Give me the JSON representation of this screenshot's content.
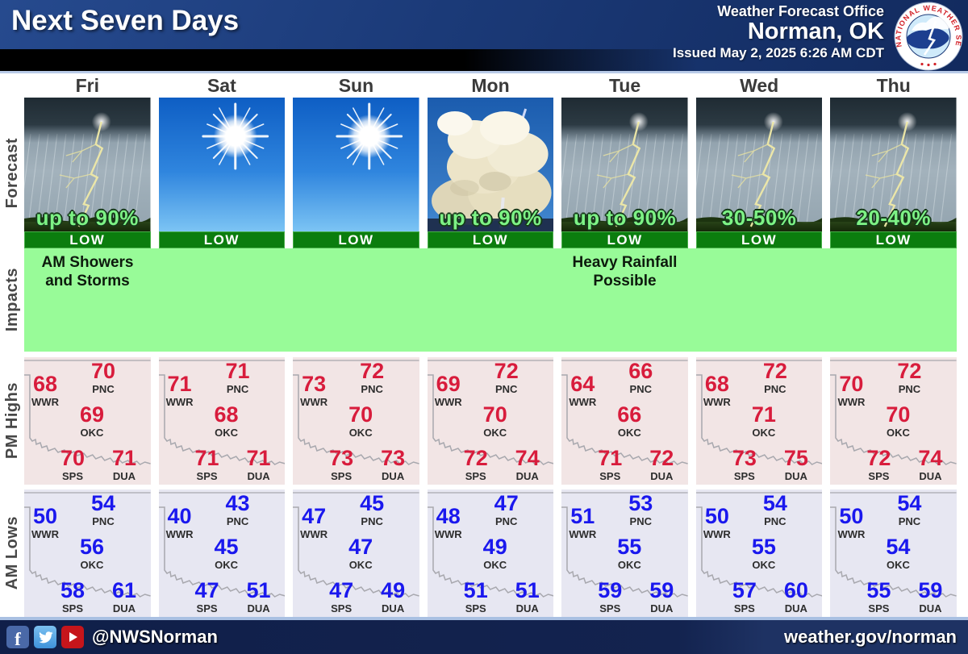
{
  "header": {
    "title": "Next Seven Days",
    "office_line1": "Weather Forecast Office",
    "office_line2": "Norman, OK",
    "issued": "Issued May 2, 2025 6:26 AM CDT",
    "logo_text": "NATIONAL WEATHER SERVICE"
  },
  "days": [
    "Fri",
    "Sat",
    "Sun",
    "Mon",
    "Tue",
    "Wed",
    "Thu"
  ],
  "row_labels": {
    "forecast": "Forecast",
    "impacts": "Impacts",
    "pm_highs": "PM Highs",
    "am_lows": "AM Lows"
  },
  "forecast": {
    "cells": [
      {
        "day": "Fri",
        "icon": "thunderstorm",
        "prob": "up to 90%",
        "risk": "LOW"
      },
      {
        "day": "Sat",
        "icon": "sunny",
        "prob": "",
        "risk": "LOW"
      },
      {
        "day": "Sun",
        "icon": "sunny",
        "prob": "",
        "risk": "LOW"
      },
      {
        "day": "Mon",
        "icon": "cumulonimbus",
        "prob": "up to 90%",
        "risk": "LOW"
      },
      {
        "day": "Tue",
        "icon": "thunderstorm",
        "prob": "up to 90%",
        "risk": "LOW"
      },
      {
        "day": "Wed",
        "icon": "thunderstorm",
        "prob": "30-50%",
        "risk": "LOW"
      },
      {
        "day": "Thu",
        "icon": "thunderstorm",
        "prob": "20-40%",
        "risk": "LOW"
      }
    ]
  },
  "impacts": {
    "fri": {
      "line1": "AM Showers",
      "line2": "and Storms"
    },
    "tue": {
      "line1": "Heavy Rainfall",
      "line2": "Possible"
    }
  },
  "stations": [
    "WWR",
    "PNC",
    "OKC",
    "SPS",
    "DUA"
  ],
  "pm_highs": [
    {
      "WWR": "68",
      "PNC": "70",
      "OKC": "69",
      "SPS": "70",
      "DUA": "71"
    },
    {
      "WWR": "71",
      "PNC": "71",
      "OKC": "68",
      "SPS": "71",
      "DUA": "71"
    },
    {
      "WWR": "73",
      "PNC": "72",
      "OKC": "70",
      "SPS": "73",
      "DUA": "73"
    },
    {
      "WWR": "69",
      "PNC": "72",
      "OKC": "70",
      "SPS": "72",
      "DUA": "74"
    },
    {
      "WWR": "64",
      "PNC": "66",
      "OKC": "66",
      "SPS": "71",
      "DUA": "72"
    },
    {
      "WWR": "68",
      "PNC": "72",
      "OKC": "71",
      "SPS": "73",
      "DUA": "75"
    },
    {
      "WWR": "70",
      "PNC": "72",
      "OKC": "70",
      "SPS": "72",
      "DUA": "74"
    }
  ],
  "am_lows": [
    {
      "WWR": "50",
      "PNC": "54",
      "OKC": "56",
      "SPS": "58",
      "DUA": "61"
    },
    {
      "WWR": "40",
      "PNC": "43",
      "OKC": "45",
      "SPS": "47",
      "DUA": "51"
    },
    {
      "WWR": "47",
      "PNC": "45",
      "OKC": "47",
      "SPS": "47",
      "DUA": "49"
    },
    {
      "WWR": "48",
      "PNC": "47",
      "OKC": "49",
      "SPS": "51",
      "DUA": "51"
    },
    {
      "WWR": "51",
      "PNC": "53",
      "OKC": "55",
      "SPS": "59",
      "DUA": "59"
    },
    {
      "WWR": "50",
      "PNC": "54",
      "OKC": "55",
      "SPS": "57",
      "DUA": "60"
    },
    {
      "WWR": "50",
      "PNC": "54",
      "OKC": "54",
      "SPS": "55",
      "DUA": "59"
    }
  ],
  "footer": {
    "social_icons": [
      "facebook-icon",
      "twitter-icon",
      "youtube-icon"
    ],
    "handle": "@NWSNorman",
    "url": "weather.gov/norman"
  },
  "colors": {
    "header_navy": "#1b3a78",
    "risk_low_green": "#0b7d0e",
    "impacts_green": "#98fb98",
    "pm_high_red": "#d81c3c",
    "am_low_blue": "#1a18ee",
    "prob_text_green": "#7df285"
  },
  "chart_data": {
    "type": "table",
    "title": "Next Seven Days",
    "subtitle": "Weather Forecast Office Norman, OK — Issued May 2, 2025 6:26 AM CDT",
    "categories": [
      "Fri",
      "Sat",
      "Sun",
      "Mon",
      "Tue",
      "Wed",
      "Thu"
    ],
    "forecast_icons": [
      "thunderstorm",
      "sunny",
      "sunny",
      "cumulonimbus",
      "thunderstorm",
      "thunderstorm",
      "thunderstorm"
    ],
    "rain_probability": [
      "up to 90%",
      "",
      "",
      "up to 90%",
      "up to 90%",
      "30-50%",
      "20-40%"
    ],
    "severe_risk": [
      "LOW",
      "LOW",
      "LOW",
      "LOW",
      "LOW",
      "LOW",
      "LOW"
    ],
    "impacts": {
      "Fri": "AM Showers and Storms",
      "Tue": "Heavy Rainfall Possible"
    },
    "pm_highs_by_station": {
      "WWR": [
        68,
        71,
        73,
        69,
        64,
        68,
        70
      ],
      "PNC": [
        70,
        71,
        72,
        72,
        66,
        72,
        72
      ],
      "OKC": [
        69,
        68,
        70,
        70,
        66,
        71,
        70
      ],
      "SPS": [
        70,
        71,
        73,
        72,
        71,
        73,
        72
      ],
      "DUA": [
        71,
        71,
        73,
        74,
        72,
        75,
        74
      ]
    },
    "am_lows_by_station": {
      "WWR": [
        50,
        40,
        47,
        48,
        51,
        50,
        50
      ],
      "PNC": [
        54,
        43,
        45,
        47,
        53,
        54,
        54
      ],
      "OKC": [
        56,
        45,
        47,
        49,
        55,
        55,
        54
      ],
      "SPS": [
        58,
        47,
        47,
        51,
        59,
        57,
        55
      ],
      "DUA": [
        61,
        51,
        49,
        51,
        59,
        60,
        59
      ]
    }
  }
}
